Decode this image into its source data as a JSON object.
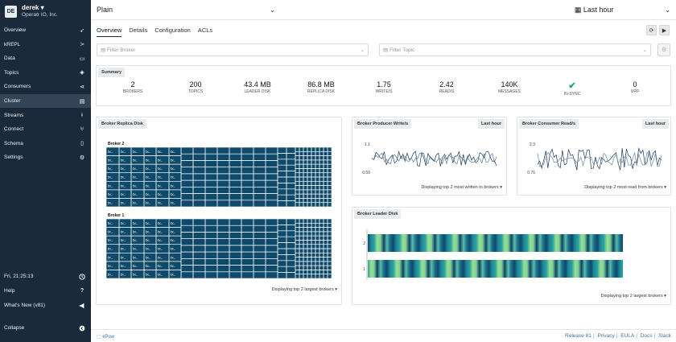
{
  "sidebar": {
    "avatar": "DE",
    "user": "derek",
    "org": "Operatr IO, Inc.",
    "items": [
      {
        "label": "Overview",
        "icon": "rocket-icon"
      },
      {
        "label": "kREPL",
        "icon": "terminal-icon"
      },
      {
        "label": "Data",
        "icon": "folder-icon"
      },
      {
        "label": "Topics",
        "icon": "layers-icon"
      },
      {
        "label": "Consumers",
        "icon": "share-icon"
      },
      {
        "label": "Cluster",
        "icon": "server-icon"
      },
      {
        "label": "Streams",
        "icon": "branch-icon"
      },
      {
        "label": "Connect",
        "icon": "plug-icon"
      },
      {
        "label": "Schema",
        "icon": "file-icon"
      },
      {
        "label": "Settings",
        "icon": "gear-icon"
      }
    ],
    "time": "Fri, 21:25:13",
    "help": "Help",
    "whats_new": "What's New (v81)",
    "collapse": "Collapse"
  },
  "topbar": {
    "environment": "Plain",
    "range": "Last hour"
  },
  "tabs": [
    "Overview",
    "Details",
    "Configuration",
    "ACLs"
  ],
  "filters": {
    "broker_placeholder": "Filter Broker",
    "topic_placeholder": "Filter Topic"
  },
  "summary": {
    "title": "Summary",
    "stats": [
      {
        "value": "2",
        "label": "BROKERS"
      },
      {
        "value": "200",
        "label": "TOPICS"
      },
      {
        "value": "43.4 MB",
        "label": "LEADER DISK"
      },
      {
        "value": "86.8 MB",
        "label": "REPLICA DISK"
      },
      {
        "value": "1.75",
        "label": "WRITE/S"
      },
      {
        "value": "2.42",
        "label": "READ/S"
      },
      {
        "value": "140K",
        "label": "MESSAGES"
      },
      {
        "value": "",
        "label": "IN-SYNC"
      },
      {
        "value": "0",
        "label": "URP"
      }
    ],
    "insync_color": "#22a06b"
  },
  "replica_disk": {
    "title": "Broker Replica Disk",
    "brokers": [
      "Broker 2",
      "Broker 1"
    ],
    "cell_label": "tx..",
    "footer": "Displaying top 2 largest brokers",
    "fill_color": "#0f4a6b"
  },
  "producer": {
    "title": "Broker Producer Write/s",
    "badge": "Last hour",
    "y_ticks": [
      "1.1",
      "0.56"
    ],
    "footer": "Displaying top 2 most written to brokers"
  },
  "consumer": {
    "title": "Broker Consumer Read/s",
    "badge": "Last hour",
    "y_ticks": [
      "2.3",
      "0.76"
    ],
    "footer": "Displaying top 2 most read from brokers"
  },
  "leader_disk": {
    "title": "Broker Leader Disk",
    "y_ticks": [
      "2",
      "1"
    ],
    "footer": "Displaying top 2 largest brokers"
  },
  "footer": {
    "logo": "kPow",
    "links": [
      "Release 81",
      "Privacy",
      "EULA",
      "Docs",
      "Slack"
    ]
  }
}
